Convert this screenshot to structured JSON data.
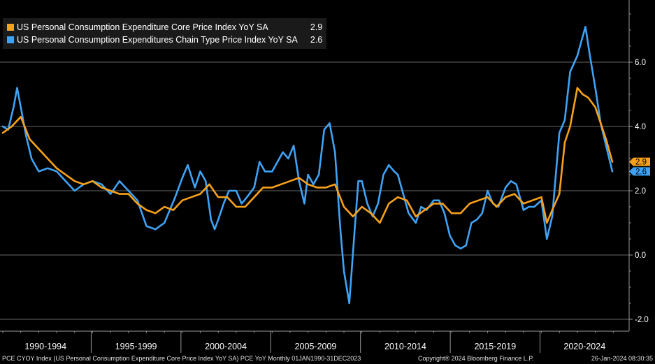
{
  "legend": [
    {
      "name": "US Personal Consumption Expenditure Core Price Index YoY SA",
      "value": "2.9",
      "color": "#f7a11a"
    },
    {
      "name": "US Personal Consumption Expenditures Chain Type Price Index YoY SA",
      "value": "2.6",
      "color": "#3fa3f5"
    }
  ],
  "footer": {
    "left": "PCE CYOY Index (US Personal Consumption Expenditure Core Price Index YoY SA) PCE YoY  Monthly 01JAN1990-31DEC2023",
    "center": "Copyright® 2024 Bloomberg Finance L.P.",
    "right": "26-Jan-2024 08:30:35"
  },
  "colors": {
    "core": "#f7a11a",
    "headline": "#3fa3f5",
    "background": "#000000",
    "grid": "#8a8a8a"
  },
  "chart_data": {
    "type": "line",
    "title": "",
    "xlabel": "",
    "ylabel": "",
    "x_range": [
      1990,
      2024
    ],
    "ylim": [
      -2.0,
      7.7
    ],
    "y_ticks": [
      -2.0,
      0.0,
      2.0,
      4.0,
      6.0
    ],
    "y_tick_labels": [
      "-2.0",
      "0.0",
      "2.0",
      "4.0",
      "6.0"
    ],
    "x_period_labels": [
      "1990-1994",
      "1995-1999",
      "2000-2004",
      "2005-2009",
      "2010-2014",
      "2015-2019",
      "2020-2024"
    ],
    "grid": "horizontal",
    "legend_position": "top-left",
    "last_value_labels": [
      "2.9",
      "2.6"
    ],
    "series": [
      {
        "name": "US Personal Consumption Expenditure Core Price Index YoY SA",
        "color": "#f7a11a",
        "x": [
          1990.0,
          1990.5,
          1991.0,
          1991.5,
          1992.0,
          1992.5,
          1993.0,
          1993.5,
          1994.0,
          1994.5,
          1995.0,
          1995.5,
          1996.0,
          1996.5,
          1997.0,
          1997.5,
          1998.0,
          1998.5,
          1999.0,
          1999.5,
          2000.0,
          2000.5,
          2001.0,
          2001.5,
          2002.0,
          2002.5,
          2003.0,
          2003.5,
          2004.0,
          2004.5,
          2005.0,
          2005.5,
          2006.0,
          2006.5,
          2007.0,
          2007.5,
          2008.0,
          2008.5,
          2009.0,
          2009.5,
          2010.0,
          2010.5,
          2011.0,
          2011.5,
          2012.0,
          2012.5,
          2013.0,
          2013.5,
          2014.0,
          2014.5,
          2015.0,
          2015.5,
          2016.0,
          2016.5,
          2017.0,
          2017.5,
          2018.0,
          2018.5,
          2019.0,
          2019.5,
          2020.0,
          2020.3,
          2020.6,
          2021.0,
          2021.3,
          2021.6,
          2022.0,
          2022.3,
          2022.6,
          2023.0,
          2023.3,
          2023.6,
          2023.95
        ],
        "values": [
          3.8,
          4.0,
          4.3,
          3.6,
          3.3,
          3.0,
          2.7,
          2.5,
          2.3,
          2.2,
          2.3,
          2.1,
          2.0,
          1.9,
          1.9,
          1.6,
          1.4,
          1.3,
          1.5,
          1.4,
          1.7,
          1.8,
          1.9,
          2.2,
          1.8,
          1.8,
          1.5,
          1.5,
          1.8,
          2.1,
          2.1,
          2.2,
          2.3,
          2.4,
          2.2,
          2.1,
          2.1,
          2.2,
          1.5,
          1.2,
          1.5,
          1.3,
          1.0,
          1.6,
          1.8,
          1.7,
          1.2,
          1.4,
          1.6,
          1.6,
          1.3,
          1.3,
          1.6,
          1.7,
          1.8,
          1.5,
          1.8,
          1.9,
          1.6,
          1.7,
          1.8,
          1.0,
          1.4,
          1.9,
          3.5,
          4.0,
          5.2,
          5.0,
          4.9,
          4.6,
          4.1,
          3.6,
          2.9
        ]
      },
      {
        "name": "US Personal Consumption Expenditures Chain Type Price Index YoY SA",
        "color": "#3fa3f5",
        "x": [
          1990.0,
          1990.3,
          1990.6,
          1990.8,
          1991.0,
          1991.3,
          1991.6,
          1992.0,
          1992.5,
          1993.0,
          1993.5,
          1994.0,
          1994.5,
          1995.0,
          1995.5,
          1996.0,
          1996.5,
          1997.0,
          1997.5,
          1998.0,
          1998.5,
          1999.0,
          1999.3,
          1999.6,
          2000.0,
          2000.3,
          2000.7,
          2001.0,
          2001.3,
          2001.6,
          2001.8,
          2002.0,
          2002.3,
          2002.6,
          2003.0,
          2003.3,
          2003.6,
          2004.0,
          2004.3,
          2004.6,
          2005.0,
          2005.3,
          2005.6,
          2005.9,
          2006.2,
          2006.5,
          2006.8,
          2007.0,
          2007.3,
          2007.6,
          2007.9,
          2008.2,
          2008.5,
          2008.8,
          2009.0,
          2009.3,
          2009.6,
          2009.8,
          2010.0,
          2010.3,
          2010.6,
          2010.9,
          2011.2,
          2011.5,
          2011.8,
          2012.0,
          2012.3,
          2012.6,
          2013.0,
          2013.3,
          2013.6,
          2014.0,
          2014.3,
          2014.6,
          2014.9,
          2015.2,
          2015.5,
          2015.8,
          2016.1,
          2016.4,
          2016.7,
          2017.0,
          2017.3,
          2017.6,
          2018.0,
          2018.3,
          2018.6,
          2019.0,
          2019.3,
          2019.6,
          2020.0,
          2020.3,
          2020.6,
          2021.0,
          2021.3,
          2021.6,
          2022.0,
          2022.3,
          2022.45,
          2022.7,
          2023.0,
          2023.3,
          2023.6,
          2023.95
        ],
        "values": [
          4.0,
          3.9,
          4.6,
          5.2,
          4.6,
          3.7,
          3.0,
          2.6,
          2.7,
          2.6,
          2.3,
          2.0,
          2.2,
          2.3,
          2.2,
          1.9,
          2.3,
          2.0,
          1.7,
          0.9,
          0.8,
          1.0,
          1.4,
          1.8,
          2.4,
          2.8,
          2.1,
          2.6,
          2.3,
          1.1,
          0.8,
          1.1,
          1.6,
          2.0,
          2.0,
          1.6,
          1.8,
          2.1,
          2.9,
          2.6,
          2.6,
          2.9,
          3.2,
          3.0,
          3.4,
          2.3,
          1.6,
          2.5,
          2.2,
          2.5,
          3.9,
          4.1,
          3.2,
          0.8,
          -0.5,
          -1.5,
          0.8,
          2.3,
          2.3,
          1.6,
          1.2,
          1.6,
          2.5,
          2.8,
          2.6,
          2.5,
          1.9,
          1.3,
          1.0,
          1.5,
          1.4,
          1.7,
          1.7,
          1.3,
          0.6,
          0.3,
          0.2,
          0.3,
          1.0,
          1.1,
          1.3,
          2.0,
          1.6,
          1.5,
          2.1,
          2.3,
          2.2,
          1.4,
          1.5,
          1.5,
          1.7,
          0.5,
          1.2,
          3.8,
          4.2,
          5.7,
          6.2,
          6.8,
          7.1,
          6.2,
          5.2,
          4.1,
          3.4,
          2.6
        ]
      }
    ]
  }
}
